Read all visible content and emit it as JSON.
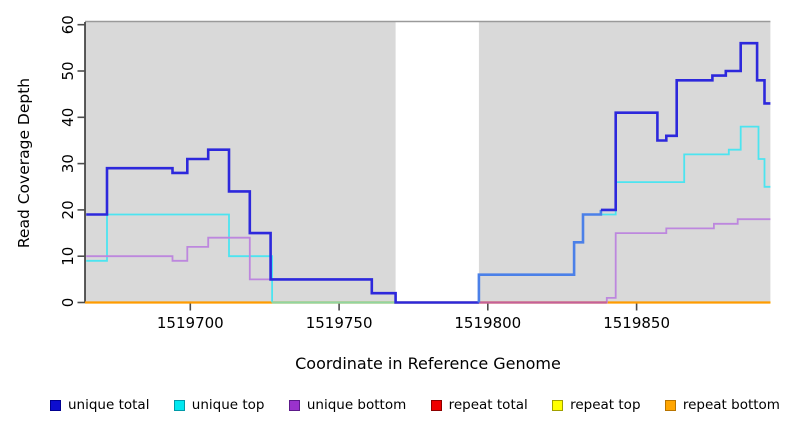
{
  "chart_data": {
    "type": "line",
    "subtype": "step-coverage",
    "title": "",
    "xlabel": "Coordinate in Reference Genome",
    "ylabel": "Read Coverage Depth",
    "xlim": [
      1519664.6,
      1519895
    ],
    "ylim": [
      0,
      60
    ],
    "x_ticks": [
      "1519700",
      "1519750",
      "1519800",
      "1519850"
    ],
    "x_tick_values": [
      1519700,
      1519750,
      1519800,
      1519850
    ],
    "y_ticks": [
      "0",
      "10",
      "20",
      "30",
      "40",
      "50",
      "60"
    ],
    "y_tick_values": [
      0,
      10,
      20,
      30,
      40,
      50,
      60
    ],
    "grid": false,
    "legend_position": "bottom",
    "plot_background": "#d9d9d9",
    "highlight_band": {
      "from": 1519769,
      "to": 1519797,
      "color": "#ffffff"
    },
    "baseline_overlays": [
      {
        "name": "unique-top-over-orange-blend",
        "from": 1519727.5,
        "to": 1519769,
        "value": 0,
        "color": "#90d5a0"
      },
      {
        "name": "unique-bottom-over-orange-blend",
        "from": 1519797,
        "to": 1519840,
        "value": 0,
        "color": "#c4609a"
      }
    ],
    "series": [
      {
        "name": "repeat total",
        "width": 2,
        "segments": [
          {
            "color": "#dd0000",
            "points": [
              [
                1519664.6,
                0
              ],
              [
                1519895,
                0
              ]
            ]
          }
        ]
      },
      {
        "name": "repeat top",
        "width": 2,
        "segments": [
          {
            "color": "#ffff00",
            "points": [
              [
                1519664.6,
                0
              ],
              [
                1519895,
                0
              ]
            ]
          }
        ]
      },
      {
        "name": "repeat bottom",
        "width": 2.2,
        "segments": [
          {
            "color": "#ff9c00",
            "points": [
              [
                1519664.6,
                0
              ],
              [
                1519895,
                0
              ]
            ]
          }
        ]
      },
      {
        "name": "unique top",
        "width": 1.8,
        "segments": [
          {
            "color": "#4ce4f0",
            "points": [
              [
                1519665,
                9
              ],
              [
                1519672,
                19
              ],
              [
                1519713,
                10
              ],
              [
                1519727.5,
                0
              ]
            ]
          },
          {
            "color": "#4ce4f0",
            "points": [
              [
                1519832,
                19
              ],
              [
                1519843,
                26
              ],
              [
                1519866,
                32
              ],
              [
                1519881,
                33
              ],
              [
                1519885,
                38
              ],
              [
                1519891,
                31
              ],
              [
                1519893,
                25
              ],
              [
                1519895,
                25
              ]
            ]
          }
        ]
      },
      {
        "name": "unique bottom",
        "width": 1.8,
        "segments": [
          {
            "color": "#bd87de",
            "points": [
              [
                1519665,
                10
              ],
              [
                1519694,
                9
              ],
              [
                1519699,
                12
              ],
              [
                1519706,
                14
              ],
              [
                1519720,
                5
              ],
              [
                1519761,
                2
              ],
              [
                1519769,
                0
              ],
              [
                1519840,
                1
              ],
              [
                1519843,
                15
              ],
              [
                1519860,
                16
              ],
              [
                1519876,
                17
              ],
              [
                1519884,
                18
              ],
              [
                1519895,
                18
              ]
            ]
          }
        ]
      },
      {
        "name": "unique total",
        "width": 2.6,
        "segments": [
          {
            "color": "#2d28dc",
            "points": [
              [
                1519665,
                19
              ],
              [
                1519672,
                29
              ],
              [
                1519694,
                28
              ],
              [
                1519699,
                31
              ],
              [
                1519706,
                33
              ],
              [
                1519713,
                24
              ],
              [
                1519720,
                15
              ],
              [
                1519727,
                5
              ],
              [
                1519761,
                2
              ],
              [
                1519769,
                0
              ],
              [
                1519797,
                0
              ]
            ]
          },
          {
            "color": "#4b80e8",
            "points": [
              [
                1519797,
                0
              ],
              [
                1519797,
                6
              ],
              [
                1519829,
                13
              ],
              [
                1519832,
                19
              ],
              [
                1519838,
                20
              ]
            ]
          },
          {
            "color": "#2d28dc",
            "points": [
              [
                1519838,
                20
              ],
              [
                1519843,
                41
              ],
              [
                1519857,
                35
              ],
              [
                1519860,
                36
              ],
              [
                1519863.5,
                48
              ],
              [
                1519875.5,
                49
              ],
              [
                1519880,
                50
              ],
              [
                1519885,
                56
              ],
              [
                1519890.5,
                48
              ],
              [
                1519893,
                43
              ],
              [
                1519895,
                43
              ]
            ]
          }
        ]
      }
    ]
  },
  "legend": {
    "items": [
      {
        "label": "unique total",
        "fill": "#0d0dcf",
        "border": "#000090"
      },
      {
        "label": "unique top",
        "fill": "#00e8f0",
        "border": "#009aa8"
      },
      {
        "label": "unique bottom",
        "fill": "#9a32cd",
        "border": "#5c1a8a"
      },
      {
        "label": "repeat total",
        "fill": "#ee0000",
        "border": "#8b0000"
      },
      {
        "label": "repeat top",
        "fill": "#ffff00",
        "border": "#a0a000"
      },
      {
        "label": "repeat bottom",
        "fill": "#ffa500",
        "border": "#b87400"
      }
    ]
  },
  "axes_style": {
    "tick_color": "#4c4c4c",
    "axis_line_color": "#333333",
    "top_border_color": "#9a9a9a",
    "text_color": "#000000"
  }
}
